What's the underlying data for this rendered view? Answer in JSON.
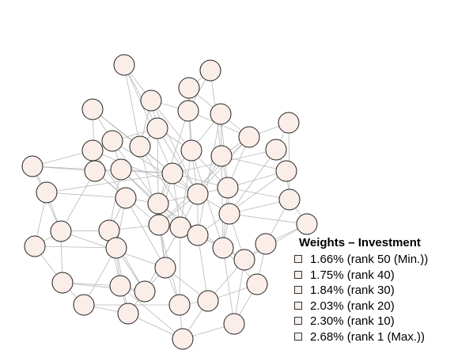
{
  "network": {
    "node_count": 50,
    "node_fill": "#fbeee9",
    "node_stroke": "#222222",
    "edge_color": "#b8b8b8"
  },
  "legend": {
    "title": "Weights – Investment",
    "items": [
      {
        "label": "1.66% (rank 50 (Min.))",
        "value": 1.66,
        "color": "#fbeee9"
      },
      {
        "label": "1.75% (rank 40)",
        "value": 1.75,
        "color": "#fbeee9"
      },
      {
        "label": "1.84% (rank 30)",
        "value": 1.84,
        "color": "#fbeee9"
      },
      {
        "label": "2.03% (rank 20)",
        "value": 2.03,
        "color": "#fbeee9"
      },
      {
        "label": "2.30% (rank 10)",
        "value": 2.3,
        "color": "#fbeee9"
      },
      {
        "label": "2.68% (rank 1 (Max.))",
        "value": 2.68,
        "color": "#fbeee9"
      }
    ]
  }
}
